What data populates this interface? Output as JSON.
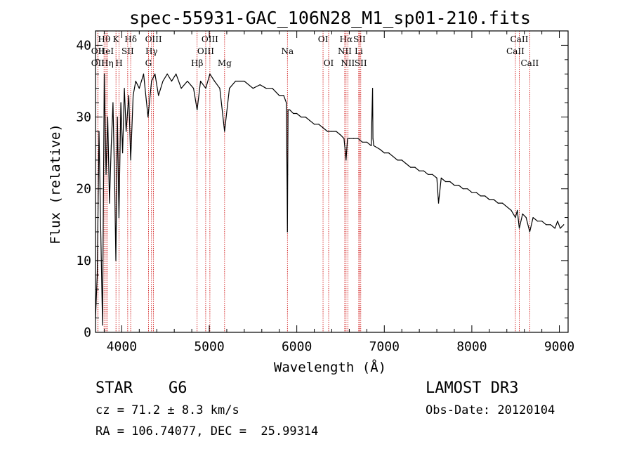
{
  "chart_data": {
    "type": "line",
    "title": "spec-55931-GAC_106N28_M1_sp01-210.fits",
    "xlabel": "Wavelength (Å)",
    "ylabel": "Flux (relative)",
    "xlim": [
      3700,
      9100
    ],
    "ylim": [
      0,
      42
    ],
    "xticks": [
      4000,
      5000,
      6000,
      7000,
      8000,
      9000
    ],
    "yticks": [
      0,
      10,
      20,
      30,
      40
    ],
    "grid": false,
    "series": [
      {
        "name": "spectrum",
        "x": [
          3700,
          3720,
          3740,
          3760,
          3780,
          3800,
          3820,
          3840,
          3860,
          3880,
          3900,
          3920,
          3933,
          3950,
          3968,
          3990,
          4010,
          4030,
          4050,
          4080,
          4102,
          4130,
          4160,
          4200,
          4250,
          4300,
          4340,
          4380,
          4420,
          4470,
          4520,
          4570,
          4620,
          4680,
          4750,
          4820,
          4861,
          4900,
          4960,
          5007,
          5060,
          5120,
          5175,
          5230,
          5300,
          5400,
          5500,
          5580,
          5650,
          5720,
          5800,
          5850,
          5880,
          5890,
          5893,
          5896,
          5900,
          5920,
          5960,
          6000,
          6050,
          6100,
          6150,
          6200,
          6250,
          6300,
          6350,
          6400,
          6450,
          6500,
          6540,
          6563,
          6580,
          6600,
          6650,
          6700,
          6750,
          6800,
          6850,
          6866,
          6870,
          6880,
          6950,
          7000,
          7050,
          7100,
          7150,
          7200,
          7250,
          7300,
          7350,
          7400,
          7450,
          7500,
          7550,
          7600,
          7620,
          7650,
          7700,
          7750,
          7800,
          7850,
          7900,
          7950,
          8000,
          8050,
          8100,
          8150,
          8200,
          8250,
          8300,
          8350,
          8400,
          8450,
          8498,
          8520,
          8542,
          8580,
          8620,
          8662,
          8700,
          8750,
          8800,
          8850,
          8900,
          8950,
          8980,
          9010,
          9050
        ],
        "y": [
          2,
          8,
          28,
          14,
          1,
          36,
          22,
          30,
          18,
          26,
          32,
          20,
          10,
          30,
          16,
          32,
          25,
          34,
          28,
          33,
          24,
          33,
          35,
          34,
          36,
          30,
          35,
          36,
          33,
          35,
          36,
          35,
          36,
          34,
          35,
          34,
          31,
          35,
          34,
          36,
          35,
          34,
          28,
          34,
          35,
          35,
          34,
          34.5,
          34,
          34,
          33,
          33,
          32,
          20,
          14,
          22,
          31,
          31,
          30.5,
          30.5,
          30,
          30,
          29.5,
          29,
          29,
          28.5,
          28,
          28,
          28,
          27.5,
          27,
          24,
          27,
          27,
          27,
          27,
          26.5,
          26.5,
          26,
          34,
          27,
          26,
          25.5,
          25,
          25,
          24.5,
          24,
          24,
          23.5,
          23,
          23,
          22.5,
          22.5,
          22,
          22,
          21.5,
          18,
          21.5,
          21,
          21,
          20.5,
          20.5,
          20,
          20,
          19.5,
          19.5,
          19,
          19,
          18.5,
          18.5,
          18,
          18,
          17.5,
          17,
          16,
          17,
          14.5,
          16.5,
          16,
          14,
          16,
          15.5,
          15.5,
          15,
          15,
          14.5,
          15.5,
          14.5,
          15
        ]
      }
    ],
    "line_markers": [
      {
        "label": "Hθ",
        "x": 3798,
        "row": 1
      },
      {
        "label": "OII",
        "x": 3727,
        "row": 2
      },
      {
        "label": "OII",
        "x": 3727,
        "row": 3
      },
      {
        "label": "HeI",
        "x": 3820,
        "row": 2
      },
      {
        "label": "Hη",
        "x": 3835,
        "row": 3
      },
      {
        "label": "K",
        "x": 3934,
        "row": 1
      },
      {
        "label": "SII",
        "x": 4068,
        "row": 2
      },
      {
        "label": "H",
        "x": 3969,
        "row": 3
      },
      {
        "label": "Hδ",
        "x": 4102,
        "row": 1
      },
      {
        "label": "OIII",
        "x": 4363,
        "row": 1
      },
      {
        "label": "Hγ",
        "x": 4340,
        "row": 2
      },
      {
        "label": "G",
        "x": 4305,
        "row": 3
      },
      {
        "label": "OIII",
        "x": 5007,
        "row": 1
      },
      {
        "label": "OIII",
        "x": 4959,
        "row": 2
      },
      {
        "label": "Hβ",
        "x": 4861,
        "row": 3
      },
      {
        "label": "Mg",
        "x": 5175,
        "row": 3
      },
      {
        "label": "Na",
        "x": 5893,
        "row": 2
      },
      {
        "label": "OI",
        "x": 6300,
        "row": 1
      },
      {
        "label": "OI",
        "x": 6364,
        "row": 3
      },
      {
        "label": "Hα",
        "x": 6563,
        "row": 1
      },
      {
        "label": "NII",
        "x": 6548,
        "row": 2
      },
      {
        "label": "NII",
        "x": 6583,
        "row": 3
      },
      {
        "label": "SII",
        "x": 6716,
        "row": 1
      },
      {
        "label": "Li",
        "x": 6708,
        "row": 2
      },
      {
        "label": "SII",
        "x": 6731,
        "row": 3
      },
      {
        "label": "CaII",
        "x": 8542,
        "row": 1
      },
      {
        "label": "CaII",
        "x": 8498,
        "row": 2
      },
      {
        "label": "CaII",
        "x": 8662,
        "row": 3
      }
    ]
  },
  "info": {
    "class_label": "STAR",
    "subclass": "G6",
    "survey": "LAMOST DR3",
    "cz": "cz = 71.2 ± 8.3 km/s",
    "obs_date": "Obs-Date: 20120104",
    "coords": "RA = 106.74077, DEC =  25.99314"
  },
  "colors": {
    "marker_line": "#cc0000",
    "axis": "#000000"
  }
}
